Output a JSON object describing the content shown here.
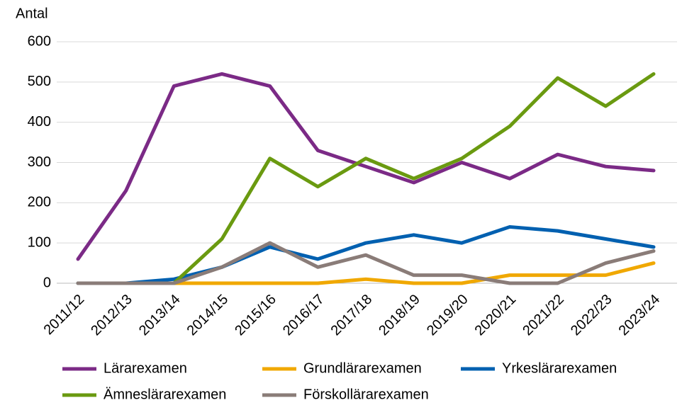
{
  "chart_data": {
    "type": "line",
    "y_label": "Antal",
    "categories": [
      "2011/12",
      "2012/13",
      "2013/14",
      "2014/15",
      "2015/16",
      "2016/17",
      "2017/18",
      "2018/19",
      "2019/20",
      "2020/21",
      "2021/22",
      "2022/23",
      "2023/24"
    ],
    "series": [
      {
        "name": "Lärarexamen",
        "color": "#7b2a86",
        "values": [
          60,
          230,
          490,
          520,
          490,
          330,
          290,
          250,
          300,
          260,
          320,
          290,
          280
        ]
      },
      {
        "name": "Grundlärarexamen",
        "color": "#f0a800",
        "values": [
          0,
          0,
          0,
          0,
          0,
          0,
          10,
          0,
          0,
          20,
          20,
          20,
          50
        ]
      },
      {
        "name": "Yrkeslärarexamen",
        "color": "#0060b0",
        "values": [
          0,
          0,
          10,
          40,
          90,
          60,
          100,
          120,
          100,
          140,
          130,
          110,
          90
        ]
      },
      {
        "name": "Ämneslärarexamen",
        "color": "#6a9a10",
        "values": [
          null,
          null,
          0,
          110,
          310,
          240,
          310,
          260,
          310,
          390,
          510,
          440,
          520
        ]
      },
      {
        "name": "Förskollärarexamen",
        "color": "#8a7c78",
        "values": [
          0,
          0,
          0,
          40,
          100,
          40,
          70,
          20,
          20,
          0,
          0,
          50,
          80
        ]
      }
    ],
    "ylim": [
      0,
      600
    ],
    "yticks": [
      0,
      100,
      200,
      300,
      400,
      500,
      600
    ],
    "grid": true
  }
}
